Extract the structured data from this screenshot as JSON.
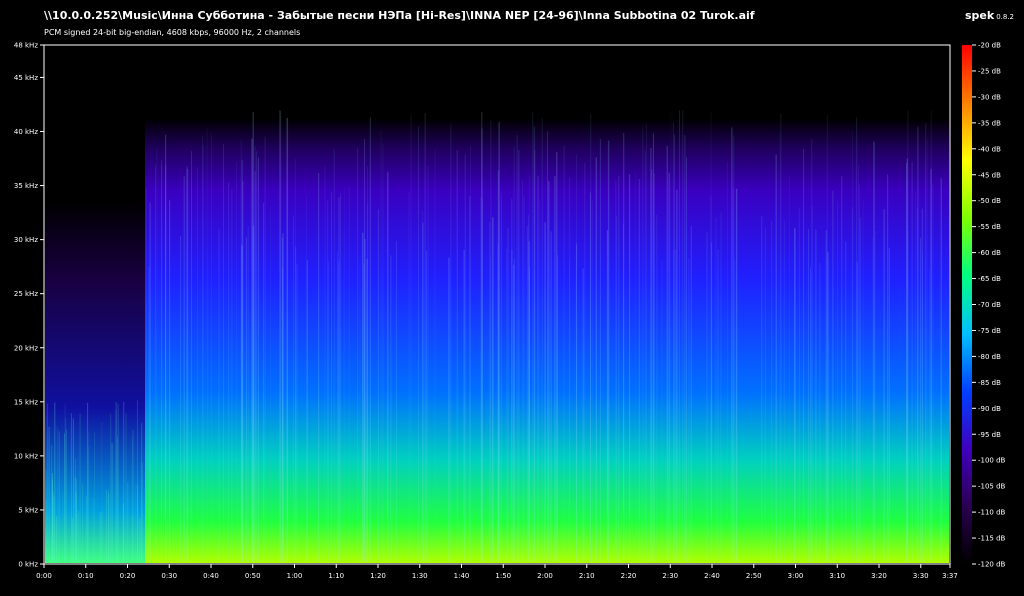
{
  "header": {
    "file_path": "\\\\10.0.0.252\\Music\\Инна Субботина - Забытые песни НЭПа [Hi-Res]\\INNA NEP [24-96]\\Inna Subbotina 02 Turok.aif",
    "audio_info": "PCM signed 24-bit big-endian, 4608 kbps, 96000 Hz, 2 channels",
    "app_name": "spek",
    "app_version": "0.8.2"
  },
  "chart_data": {
    "type": "heatmap",
    "title": "\\\\10.0.0.252\\Music\\Инна Субботина - Забытые песни НЭПа [Hi-Res]\\INNA NEP [24-96]\\Inna Subbotina 02 Turok.aif",
    "subtitle": "PCM signed 24-bit big-endian, 4608 kbps, 96000 Hz, 2 channels",
    "x_axis": {
      "unit": "time",
      "range_seconds": [
        0,
        217
      ],
      "tick_labels": [
        "0:00",
        "0:10",
        "0:20",
        "0:30",
        "0:40",
        "0:50",
        "1:00",
        "1:10",
        "1:20",
        "1:30",
        "1:40",
        "1:50",
        "2:00",
        "2:10",
        "2:20",
        "2:30",
        "2:40",
        "2:50",
        "3:00",
        "3:10",
        "3:20",
        "3:30",
        "3:37"
      ],
      "tick_seconds": [
        0,
        10,
        20,
        30,
        40,
        50,
        60,
        70,
        80,
        90,
        100,
        110,
        120,
        130,
        140,
        150,
        160,
        170,
        180,
        190,
        200,
        210,
        217
      ]
    },
    "y_axis": {
      "unit": "kHz",
      "range": [
        0,
        48
      ],
      "tick_labels": [
        "0 kHz",
        "5 kHz",
        "10 kHz",
        "15 kHz",
        "20 kHz",
        "25 kHz",
        "30 kHz",
        "35 kHz",
        "40 kHz",
        "45 kHz",
        "48 kHz"
      ],
      "tick_values": [
        0,
        5,
        10,
        15,
        20,
        25,
        30,
        35,
        40,
        45,
        48
      ]
    },
    "color_scale": {
      "unit": "dB",
      "range": [
        -120,
        -20
      ],
      "tick_labels": [
        "-20 dB",
        "-25 dB",
        "-30 dB",
        "-35 dB",
        "-40 dB",
        "-45 dB",
        "-50 dB",
        "-55 dB",
        "-60 dB",
        "-65 dB",
        "-70 dB",
        "-75 dB",
        "-80 dB",
        "-85 dB",
        "-90 dB",
        "-95 dB",
        "-100 dB",
        "-105 dB",
        "-110 dB",
        "-115 dB",
        "-120 dB"
      ],
      "tick_values": [
        -20,
        -25,
        -30,
        -35,
        -40,
        -45,
        -50,
        -55,
        -60,
        -65,
        -70,
        -75,
        -80,
        -85,
        -90,
        -95,
        -100,
        -105,
        -110,
        -115,
        -120
      ],
      "colors": [
        "#000000",
        "#2a0050",
        "#4000c0",
        "#0040ff",
        "#00c0ff",
        "#00ff80",
        "#80ff00",
        "#ffff00",
        "#ff8000",
        "#ff0000"
      ]
    },
    "grid": false
  }
}
